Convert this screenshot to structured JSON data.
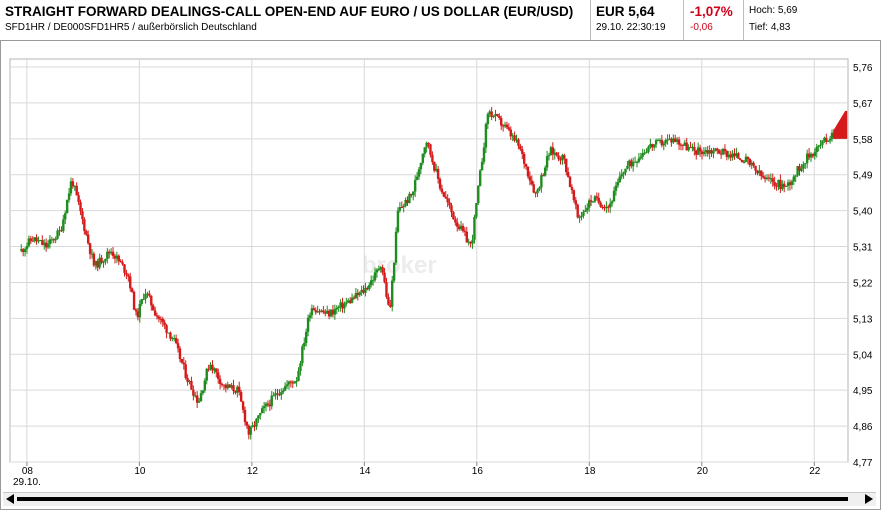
{
  "header": {
    "title": "STRAIGHT FORWARD DEALINGS-CALL OPEN-END AUF EURO / US DOLLAR (EUR/USD)",
    "subtitle": "SFD1HR / DE000SFD1HR5 / außerbörslich Deutschland",
    "price": "EUR 5,64",
    "datetime": "29.10. 22:30:19",
    "change_pct": "-1,07%",
    "change_abs": "-0,06",
    "high": "Hoch: 5,69",
    "low": "Tief: 4,83"
  },
  "watermark": "broker",
  "colors": {
    "up": "#1e8c1e",
    "down": "#d41a1a",
    "negative": "#d0001a",
    "grid": "#d9d9d9"
  },
  "chart_data": {
    "type": "candlestick",
    "x_ticks": [
      "08",
      "10",
      "12",
      "14",
      "16",
      "18",
      "20",
      "22"
    ],
    "x_sublabel": "29.10.",
    "y_ticks": [
      "4,77",
      "4,86",
      "4,95",
      "5,04",
      "5,13",
      "5,22",
      "5,31",
      "5,40",
      "5,49",
      "5,58",
      "5,67",
      "5,76"
    ],
    "ylim": [
      4.77,
      5.76
    ],
    "xlim": [
      7.7,
      22.6
    ],
    "grid": true,
    "path": [
      [
        7.9,
        5.3
      ],
      [
        8.1,
        5.33
      ],
      [
        8.35,
        5.31
      ],
      [
        8.6,
        5.35
      ],
      [
        8.8,
        5.48
      ],
      [
        9.0,
        5.37
      ],
      [
        9.2,
        5.26
      ],
      [
        9.5,
        5.3
      ],
      [
        9.8,
        5.24
      ],
      [
        9.95,
        5.13
      ],
      [
        10.1,
        5.2
      ],
      [
        10.3,
        5.14
      ],
      [
        10.6,
        5.08
      ],
      [
        10.85,
        4.98
      ],
      [
        11.05,
        4.92
      ],
      [
        11.25,
        5.02
      ],
      [
        11.5,
        4.96
      ],
      [
        11.75,
        4.95
      ],
      [
        11.95,
        4.84
      ],
      [
        12.2,
        4.9
      ],
      [
        12.5,
        4.95
      ],
      [
        12.8,
        4.98
      ],
      [
        13.05,
        5.16
      ],
      [
        13.35,
        5.14
      ],
      [
        13.7,
        5.17
      ],
      [
        14.0,
        5.2
      ],
      [
        14.2,
        5.24
      ],
      [
        14.3,
        5.27
      ],
      [
        14.45,
        5.14
      ],
      [
        14.6,
        5.4
      ],
      [
        14.85,
        5.44
      ],
      [
        15.1,
        5.58
      ],
      [
        15.35,
        5.46
      ],
      [
        15.6,
        5.38
      ],
      [
        15.9,
        5.31
      ],
      [
        16.2,
        5.65
      ],
      [
        16.5,
        5.61
      ],
      [
        16.75,
        5.56
      ],
      [
        17.05,
        5.44
      ],
      [
        17.3,
        5.55
      ],
      [
        17.55,
        5.53
      ],
      [
        17.8,
        5.38
      ],
      [
        18.05,
        5.43
      ],
      [
        18.35,
        5.41
      ],
      [
        18.6,
        5.5
      ],
      [
        19.05,
        5.56
      ],
      [
        19.5,
        5.58
      ],
      [
        19.85,
        5.55
      ],
      [
        20.3,
        5.55
      ],
      [
        20.75,
        5.53
      ],
      [
        21.1,
        5.48
      ],
      [
        21.5,
        5.46
      ],
      [
        21.85,
        5.53
      ],
      [
        22.3,
        5.59
      ],
      [
        22.55,
        5.62
      ]
    ],
    "close": 5.64
  }
}
